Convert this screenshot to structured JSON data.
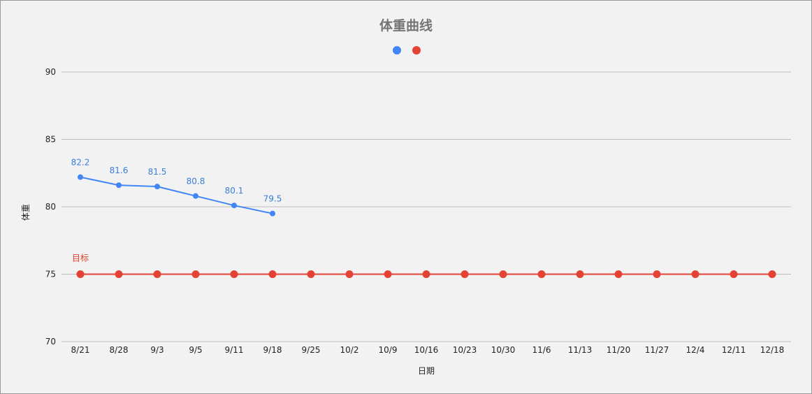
{
  "chart_data": {
    "type": "line",
    "title": "体重曲线",
    "xlabel": "日期",
    "ylabel": "体重",
    "ylim": [
      70,
      90
    ],
    "yticks": [
      70,
      75,
      80,
      85,
      90
    ],
    "grid": true,
    "legend": "top-center",
    "categories": [
      "8/21",
      "8/28",
      "9/3",
      "9/5",
      "9/11",
      "9/18",
      "9/25",
      "10/2",
      "10/9",
      "10/16",
      "10/23",
      "10/30",
      "11/6",
      "11/13",
      "11/20",
      "11/27",
      "12/4",
      "12/11",
      "12/18"
    ],
    "series": [
      {
        "color": "#4285f4",
        "values": [
          82.2,
          81.6,
          81.5,
          80.8,
          80.1,
          79.5,
          null,
          null,
          null,
          null,
          null,
          null,
          null,
          null,
          null,
          null,
          null,
          null,
          null
        ],
        "show_labels": true
      },
      {
        "color": "#e34234",
        "values": [
          75,
          75,
          75,
          75,
          75,
          75,
          75,
          75,
          75,
          75,
          75,
          75,
          75,
          75,
          75,
          75,
          75,
          75,
          75
        ],
        "annotation": "目标"
      }
    ]
  }
}
